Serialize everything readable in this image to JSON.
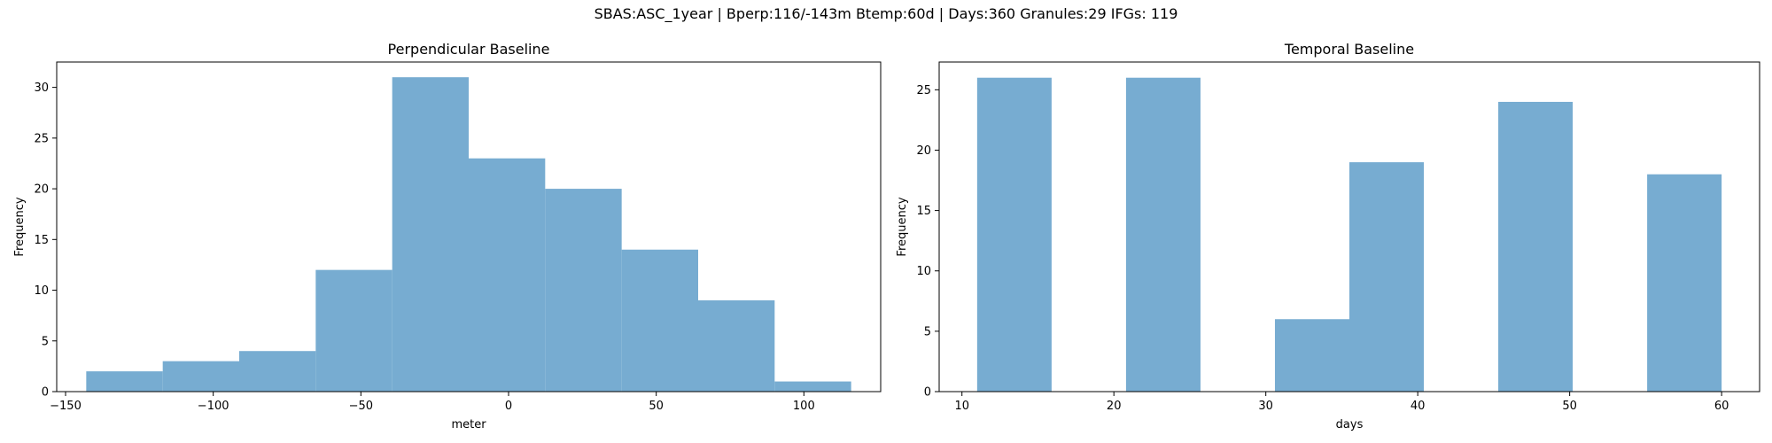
{
  "figure": {
    "suptitle": "SBAS:ASC_1year | Bperp:116/-143m Btemp:60d | Days:360 Granules:29 IFGs: 119",
    "bar_color": "#77acd1",
    "axis_color": "#000000"
  },
  "chart_data": [
    {
      "type": "bar",
      "title": "Perpendicular Baseline",
      "xlabel": "meter",
      "ylabel": "Frequency",
      "bin_edges": [
        -143,
        -117.1,
        -91.2,
        -65.3,
        -39.4,
        -13.5,
        12.4,
        38.3,
        64.2,
        90.1,
        116
      ],
      "values": [
        2,
        3,
        4,
        12,
        31,
        23,
        20,
        14,
        9,
        1
      ],
      "xlim": [
        -153,
        126
      ],
      "ylim": [
        0,
        32.5
      ],
      "xticks": [
        -150,
        -100,
        -50,
        0,
        50,
        100
      ],
      "xtick_labels": [
        "−150",
        "−100",
        "−50",
        "0",
        "50",
        "100"
      ],
      "yticks": [
        0,
        5,
        10,
        15,
        20,
        25,
        30
      ],
      "ytick_labels": [
        "0",
        "5",
        "10",
        "15",
        "20",
        "25",
        "30"
      ],
      "grid": false
    },
    {
      "type": "bar",
      "title": "Temporal Baseline",
      "xlabel": "days",
      "ylabel": "Frequency",
      "bin_edges": [
        11,
        15.9,
        20.8,
        25.7,
        30.6,
        35.5,
        40.4,
        45.3,
        50.2,
        55.1,
        60
      ],
      "values": [
        26,
        0,
        26,
        0,
        6,
        19,
        0,
        24,
        0,
        18
      ],
      "xlim": [
        8.5,
        62.5
      ],
      "ylim": [
        0,
        27.3
      ],
      "xticks": [
        10,
        20,
        30,
        40,
        50,
        60
      ],
      "xtick_labels": [
        "10",
        "20",
        "30",
        "40",
        "50",
        "60"
      ],
      "yticks": [
        0,
        5,
        10,
        15,
        20,
        25
      ],
      "ytick_labels": [
        "0",
        "5",
        "10",
        "15",
        "20",
        "25"
      ],
      "grid": false
    }
  ]
}
